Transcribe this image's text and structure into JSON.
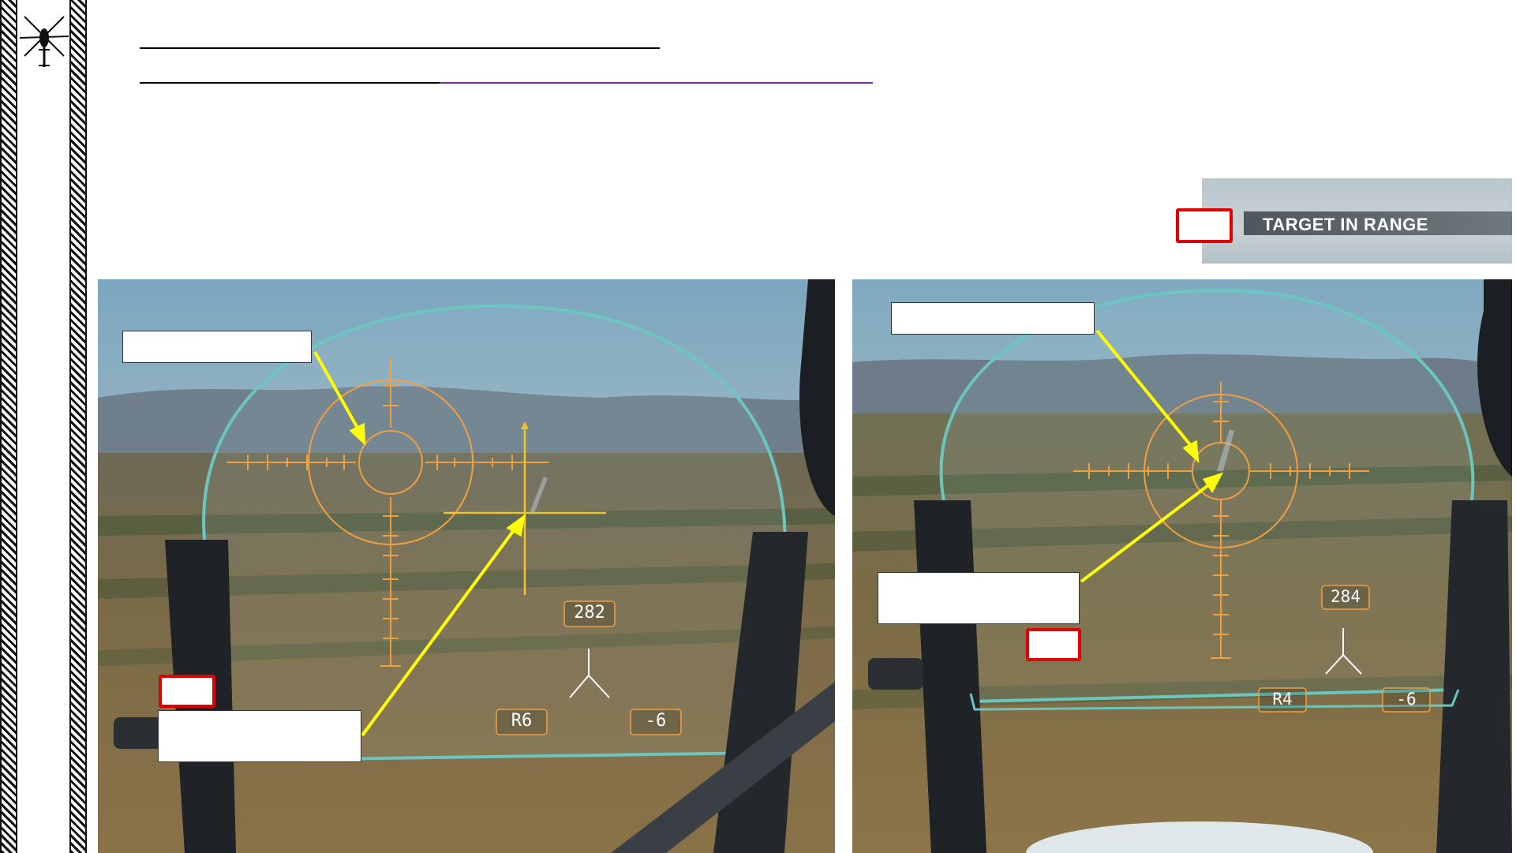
{
  "slide": {
    "accent_color": "#7030a0",
    "title_rule_color": "#000000"
  },
  "logo": {
    "icon": "helicopter-icon"
  },
  "status_banner": {
    "text": "TARGET IN RANGE"
  },
  "left_sight": {
    "heading_label": "282",
    "range_label": "R6",
    "elevation_label": "-6",
    "reticle_color": "#f0a040",
    "marker_color": "#f2c230",
    "arrow_color": "#ffff00"
  },
  "right_sight": {
    "heading_label": "284",
    "range_label": "R4",
    "elevation_label": "-6",
    "reticle_color": "#f0a040",
    "arrow_color": "#ffff00"
  }
}
